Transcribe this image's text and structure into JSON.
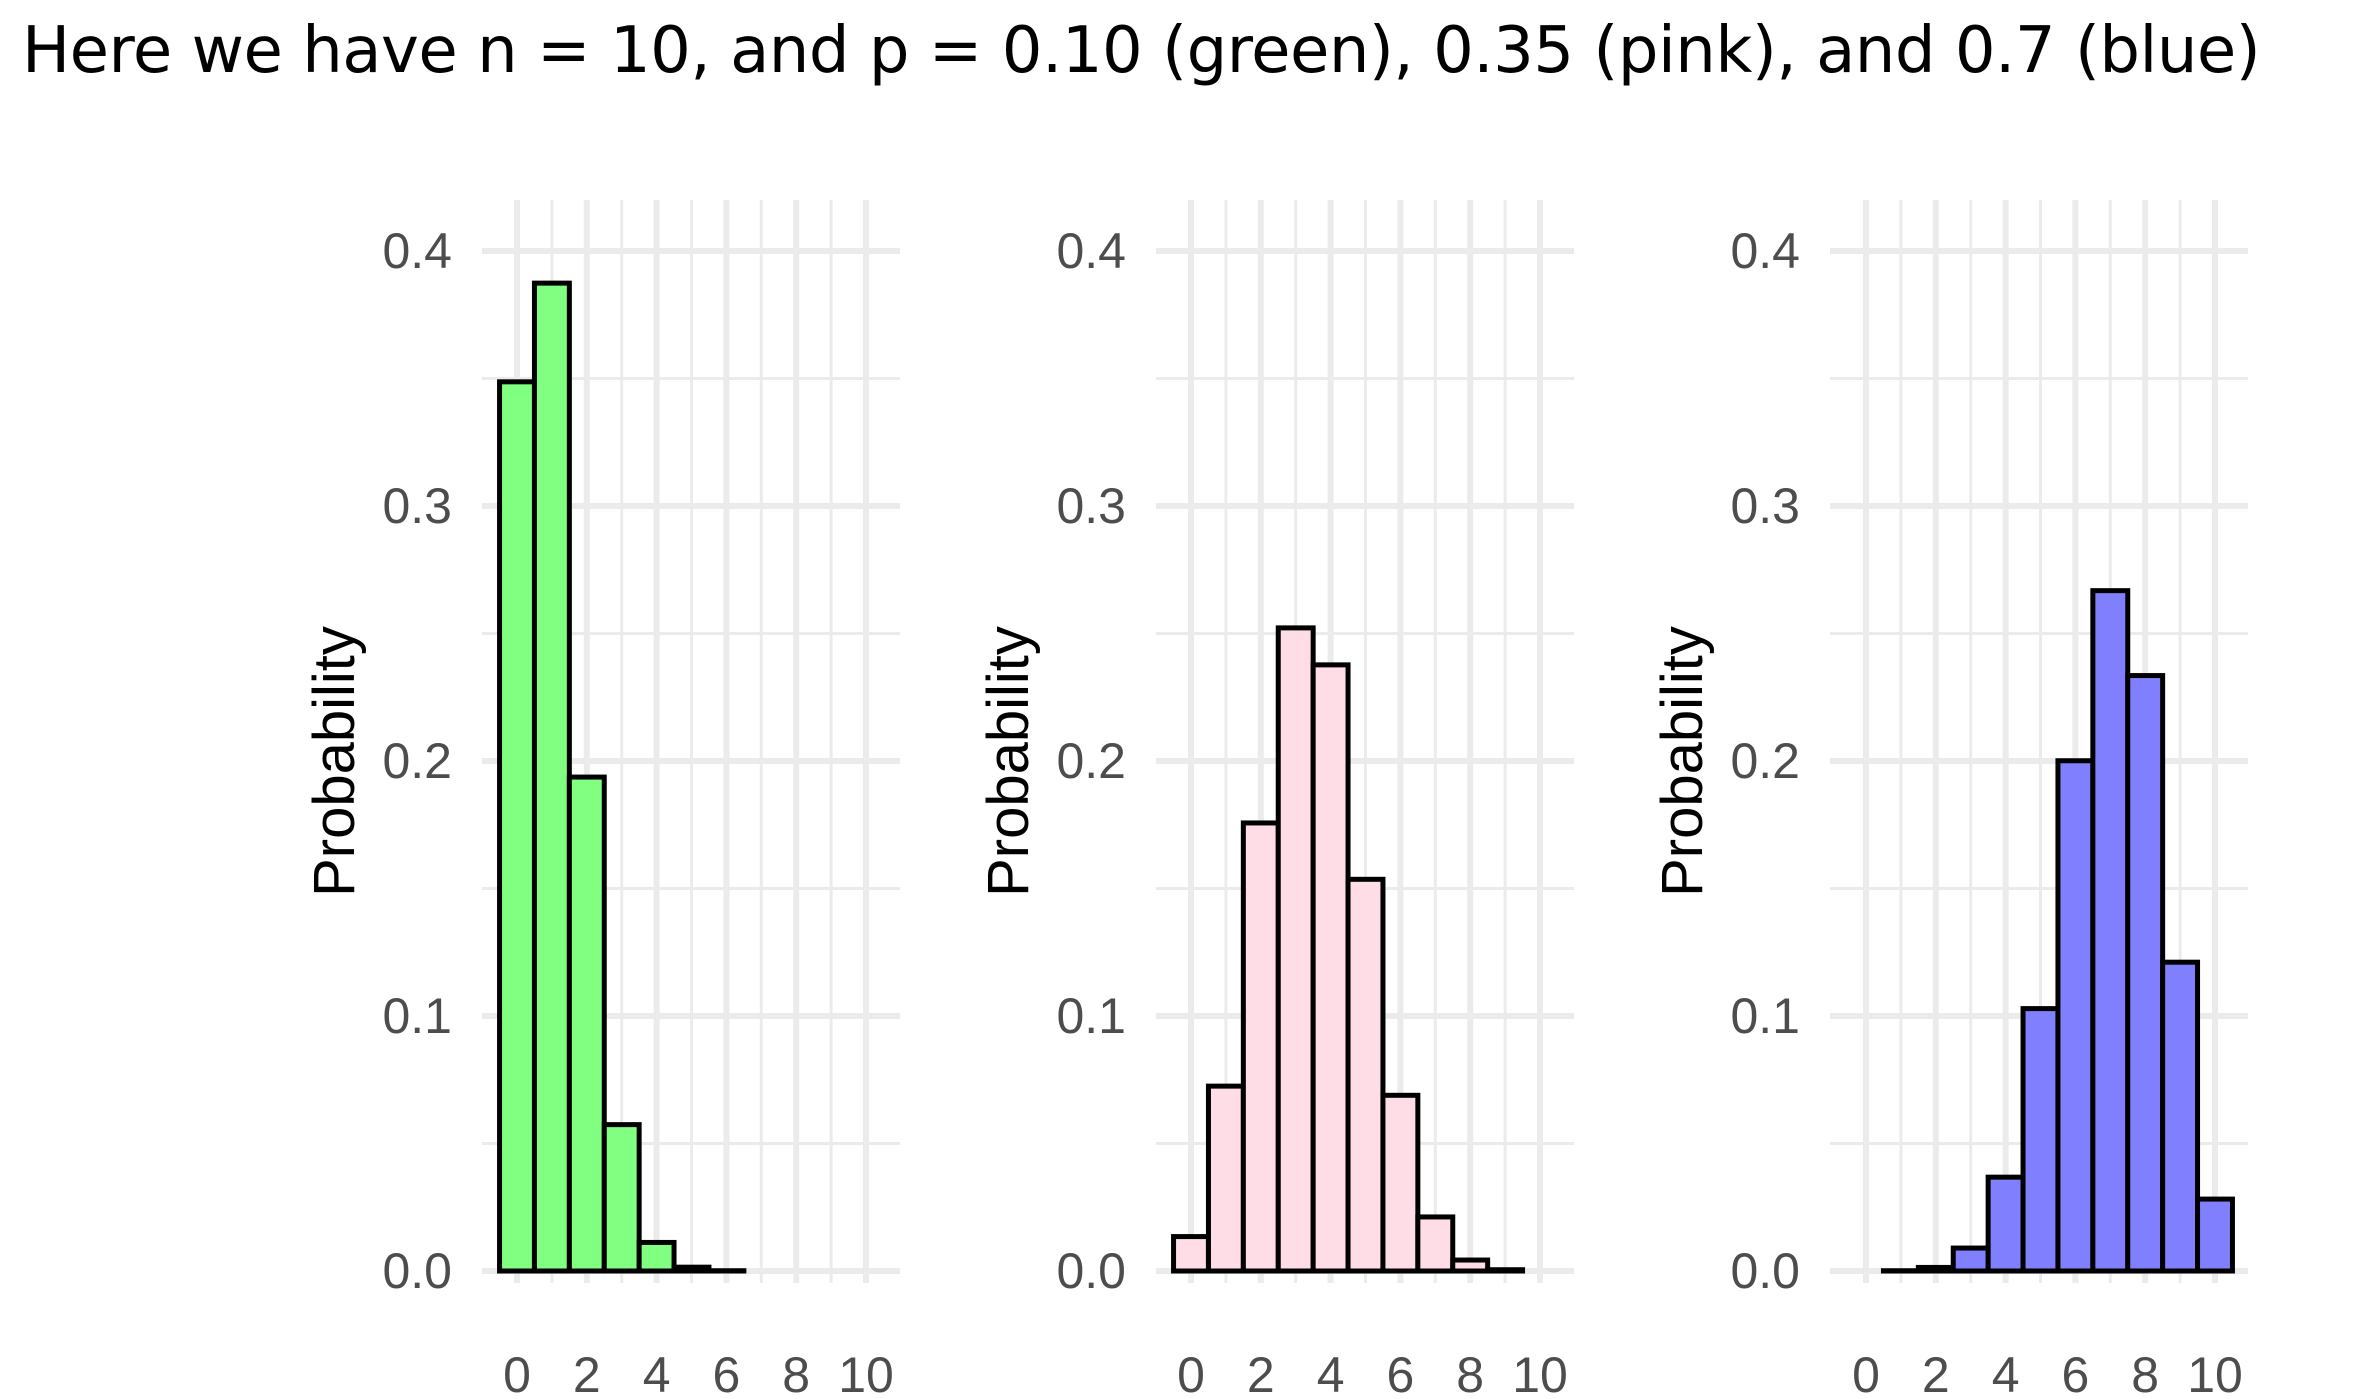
{
  "title": "Here we have n = 10, and p = 0.10 (green), 0.35 (pink), and 0.7 (blue)",
  "chart_data": [
    {
      "type": "bar",
      "ylabel": "Probability",
      "fill": "#80ff80",
      "x": [
        0,
        1,
        2,
        3,
        4,
        5,
        6,
        7,
        8,
        9,
        10
      ],
      "values": [
        0.3487,
        0.3874,
        0.1937,
        0.0574,
        0.0112,
        0.0015,
        0.0001,
        0.0,
        0.0,
        0.0,
        0.0
      ],
      "ylim": [
        0,
        0.4
      ],
      "y_ticks": [
        "0.0",
        "0.1",
        "0.2",
        "0.3",
        "0.4"
      ],
      "x_ticks": [
        "0",
        "2",
        "4",
        "6",
        "8",
        "10"
      ],
      "grid": true
    },
    {
      "type": "bar",
      "ylabel": "Probability",
      "fill": "#ffdde6",
      "x": [
        0,
        1,
        2,
        3,
        4,
        5,
        6,
        7,
        8,
        9,
        10
      ],
      "values": [
        0.0135,
        0.0725,
        0.1757,
        0.2522,
        0.2377,
        0.1536,
        0.0689,
        0.0212,
        0.0043,
        0.0005,
        0.0
      ],
      "ylim": [
        0,
        0.4
      ],
      "y_ticks": [
        "0.0",
        "0.1",
        "0.2",
        "0.3",
        "0.4"
      ],
      "x_ticks": [
        "0",
        "2",
        "4",
        "6",
        "8",
        "10"
      ],
      "grid": true
    },
    {
      "type": "bar",
      "ylabel": "Probability",
      "fill": "#8080ff",
      "x": [
        0,
        1,
        2,
        3,
        4,
        5,
        6,
        7,
        8,
        9,
        10
      ],
      "values": [
        0.0,
        0.0001,
        0.0014,
        0.009,
        0.0368,
        0.1029,
        0.2001,
        0.2668,
        0.2335,
        0.1211,
        0.0282
      ],
      "ylim": [
        0,
        0.4
      ],
      "y_ticks": [
        "0.0",
        "0.1",
        "0.2",
        "0.3",
        "0.4"
      ],
      "x_ticks": [
        "0",
        "2",
        "4",
        "6",
        "8",
        "10"
      ],
      "grid": true
    }
  ]
}
